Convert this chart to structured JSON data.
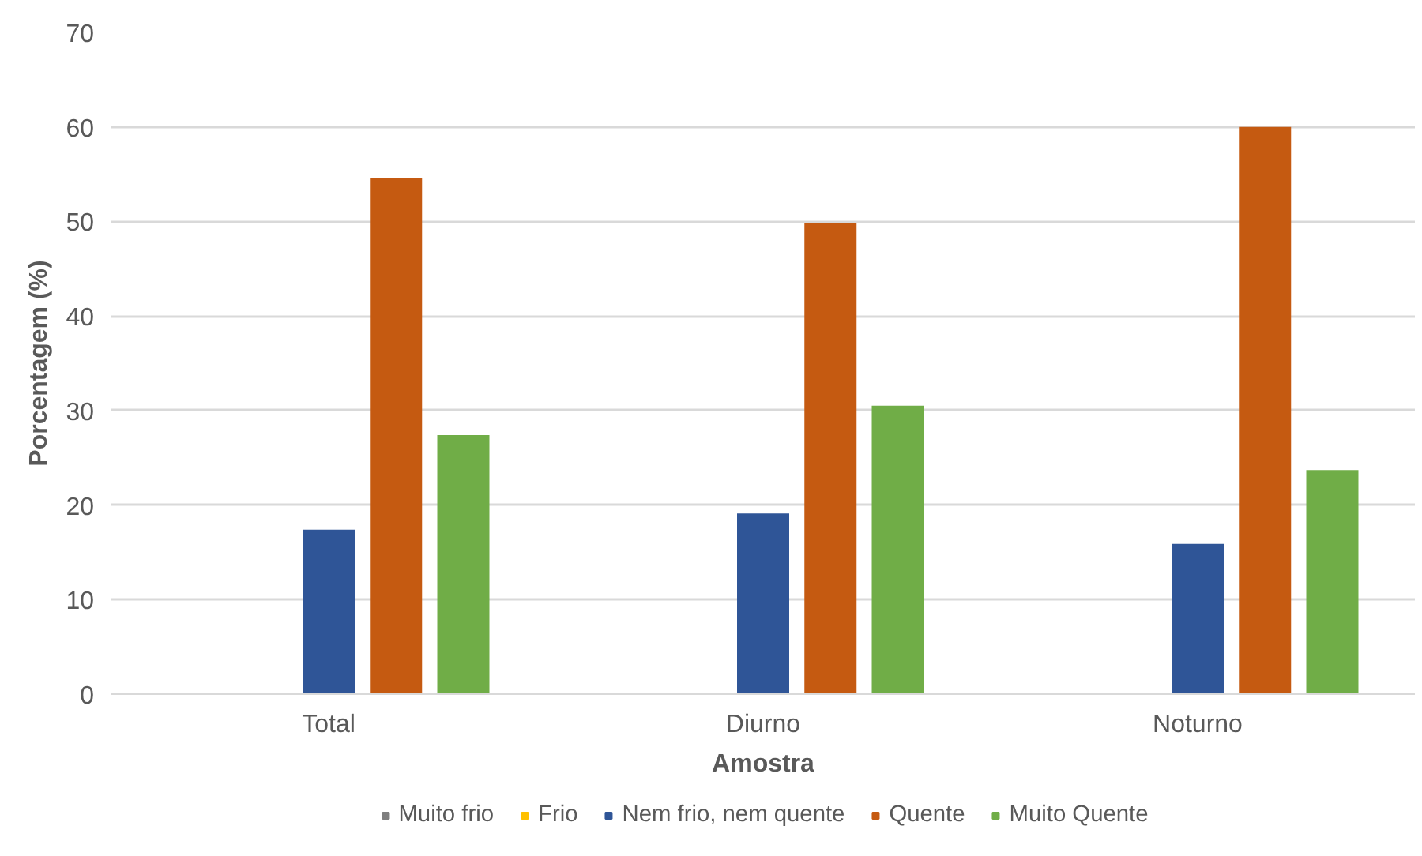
{
  "chart_data": {
    "type": "bar",
    "xlabel": "Amostra",
    "ylabel": "Porcentagem (%)",
    "categories": [
      "Total",
      "Diurno",
      "Noturno"
    ],
    "series": [
      {
        "name": "Muito frio",
        "color": "#7f7f7f",
        "values": [
          0,
          0,
          0
        ]
      },
      {
        "name": "Frio",
        "color": "#ffc000",
        "values": [
          0,
          0,
          0
        ]
      },
      {
        "name": "Nem frio, nem quente",
        "color": "#2f5597",
        "values": [
          17.4,
          19.1,
          15.9
        ]
      },
      {
        "name": "Quente",
        "color": "#c55a11",
        "values": [
          54.6,
          49.8,
          60
        ]
      },
      {
        "name": "Muito Quente",
        "color": "#70ad47",
        "values": [
          27.4,
          30.5,
          23.7
        ]
      }
    ],
    "ylim": [
      0,
      70
    ],
    "yticks": [
      0,
      10,
      20,
      30,
      40,
      50,
      60,
      70
    ],
    "grid": "y",
    "legend": "bottom"
  }
}
